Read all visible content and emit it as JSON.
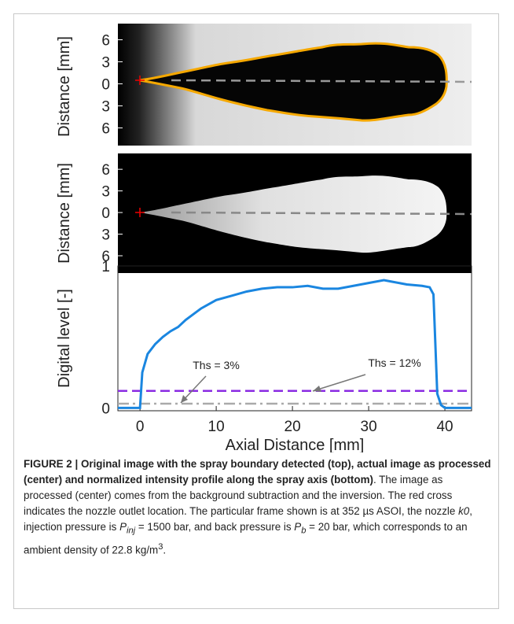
{
  "chart_data": [
    {
      "type": "image",
      "ylabel": "Distance [mm]",
      "ylim": [
        -8.4,
        8.2
      ],
      "yticks": [
        6,
        3,
        0,
        {
          "value": -3,
          "label": "3"
        },
        {
          "value": -6,
          "label": "6"
        }
      ]
    },
    {
      "type": "image",
      "ylabel": "Distance [mm]",
      "ylim": [
        -8.4,
        8.2
      ],
      "yticks": [
        6,
        3,
        0,
        {
          "value": -3,
          "label": "3"
        },
        {
          "value": -6,
          "label": "6"
        }
      ]
    },
    {
      "type": "line",
      "ylabel": "Digital level [-]",
      "xlabel": "Axial Distance [mm]",
      "xlim": [
        -2.9,
        43.5
      ],
      "ylim": [
        -0.02,
        1
      ],
      "xticks": [
        0,
        10,
        20,
        30,
        40
      ],
      "yticks": [
        0,
        1
      ],
      "series": [
        {
          "color": "#1a86e0",
          "x": [
            -2.9,
            -1,
            0,
            0.3,
            1,
            2,
            3,
            4,
            5,
            6,
            7,
            8,
            9,
            10,
            12,
            14,
            16,
            18,
            20,
            22,
            24,
            26,
            28,
            30,
            32,
            33,
            35,
            37,
            38,
            38.5,
            39,
            39.5,
            40,
            42,
            43.5
          ],
          "values": [
            0,
            0,
            0,
            0.25,
            0.38,
            0.45,
            0.5,
            0.54,
            0.57,
            0.62,
            0.66,
            0.7,
            0.73,
            0.76,
            0.79,
            0.82,
            0.84,
            0.85,
            0.85,
            0.86,
            0.84,
            0.84,
            0.86,
            0.88,
            0.9,
            0.89,
            0.87,
            0.86,
            0.85,
            0.8,
            0.1,
            0.02,
            0,
            0,
            0
          ]
        }
      ],
      "hlines": [
        {
          "value": 0.12,
          "color": "#8a2be2"
        },
        {
          "value": 0.03,
          "color": "#aaaaaa"
        }
      ],
      "annotations": [
        "Ths = 3%",
        "Ths = 12%"
      ]
    }
  ],
  "caption": {
    "segments": [
      "FIGURE 2 | Original image with the spray boundary detected (top), actual image as processed (center) and normalized intensity profile along the spray axis (bottom)",
      ". The image as processed (center) comes from the background subtraction and the inversion. The red cross indicates the nozzle outlet location. The particular frame shown is at 352 µs ASOI, the nozzle ",
      "k0",
      ", injection pressure is ",
      "P",
      "inj",
      " = 1500 bar, and back pressure is ",
      "P",
      "b",
      " = 20 bar, which corresponds to an ambient density of 22.8 kg/m",
      "3",
      "."
    ]
  }
}
